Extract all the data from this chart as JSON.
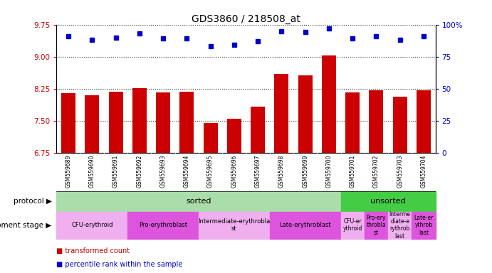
{
  "title": "GDS3860 / 218508_at",
  "samples": [
    "GSM559689",
    "GSM559690",
    "GSM559691",
    "GSM559692",
    "GSM559693",
    "GSM559694",
    "GSM559695",
    "GSM559696",
    "GSM559697",
    "GSM559698",
    "GSM559699",
    "GSM559700",
    "GSM559701",
    "GSM559702",
    "GSM559703",
    "GSM559704"
  ],
  "bar_values": [
    8.15,
    8.1,
    8.18,
    8.27,
    8.16,
    8.18,
    7.45,
    7.55,
    7.83,
    8.6,
    8.57,
    9.03,
    8.16,
    8.22,
    8.07,
    8.22
  ],
  "percentile_values": [
    91,
    88,
    90,
    93,
    89,
    89,
    83,
    84,
    87,
    95,
    94,
    97,
    89,
    91,
    88,
    91
  ],
  "ylim_left": [
    6.75,
    9.75
  ],
  "ylim_right": [
    0,
    100
  ],
  "yticks_left": [
    6.75,
    7.5,
    8.25,
    9.0,
    9.75
  ],
  "yticks_right": [
    0,
    25,
    50,
    75,
    100
  ],
  "bar_color": "#cc0000",
  "dot_color": "#0000cc",
  "dot_marker": "s",
  "dot_size": 5,
  "bar_bottom": 6.75,
  "protocol_sorted_count": 12,
  "protocol_color_sorted": "#aaddaa",
  "protocol_color_unsorted": "#44cc44",
  "dev_stages_sorted": [
    {
      "label": "CFU-erythroid",
      "start": 0,
      "end": 3
    },
    {
      "label": "Pro-erythroblast",
      "start": 3,
      "end": 6
    },
    {
      "label": "Intermediate-erythrobla\nst",
      "start": 6,
      "end": 9
    },
    {
      "label": "Late-erythroblast",
      "start": 9,
      "end": 12
    }
  ],
  "dev_stages_unsorted": [
    {
      "label": "CFU-er\nythroid",
      "start": 12,
      "end": 13
    },
    {
      "label": "Pro-ery\nthrobla\nst",
      "start": 13,
      "end": 14
    },
    {
      "label": "Interme\ndiate-e\nrythrob\nlast",
      "start": 14,
      "end": 15
    },
    {
      "label": "Late-er\nythrob\nlast",
      "start": 15,
      "end": 16
    }
  ],
  "dev_stage_colors": [
    "#f0b0f0",
    "#dd55dd",
    "#f0b0f0",
    "#dd55dd"
  ],
  "axis_label_color_left": "#cc0000",
  "axis_label_color_right": "#0000cc",
  "xtick_bg": "#d8d8d8",
  "legend_red_label": "transformed count",
  "legend_blue_label": "percentile rank within the sample"
}
